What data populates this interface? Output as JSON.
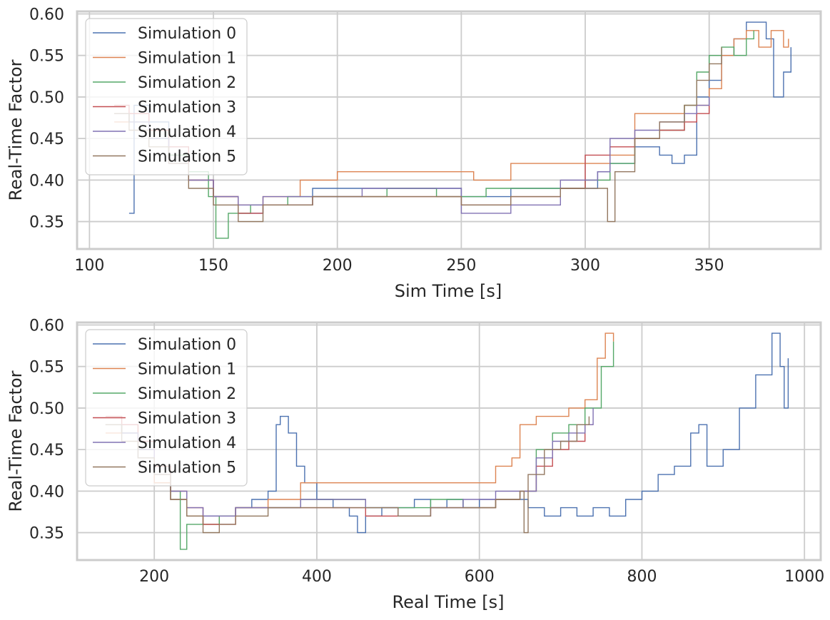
{
  "chart_data": [
    {
      "type": "line",
      "xlabel": "Sim Time [s]",
      "ylabel": "Real-Time Factor",
      "xlim": [
        95,
        395
      ],
      "ylim": [
        0.317,
        0.603
      ],
      "xticks": [
        100,
        150,
        200,
        250,
        300,
        350
      ],
      "xtick_labels": [
        "100",
        "150",
        "200",
        "250",
        "300",
        "350"
      ],
      "yticks": [
        0.35,
        0.4,
        0.45,
        0.5,
        0.55,
        0.6
      ],
      "ytick_labels": [
        "0.35",
        "0.40",
        "0.45",
        "0.50",
        "0.55",
        "0.60"
      ],
      "grid": true,
      "legend_position": "top-left",
      "series": [
        {
          "name": "Simulation 0",
          "color": "#4c72b0",
          "x": [
            116,
            118,
            124,
            132,
            140,
            150,
            160,
            170,
            190,
            210,
            230,
            250,
            270,
            290,
            305,
            310,
            320,
            330,
            335,
            340,
            345,
            350,
            355,
            360,
            365,
            370,
            373,
            376,
            380,
            383
          ],
          "y": [
            0.36,
            0.49,
            0.47,
            0.43,
            0.4,
            0.38,
            0.36,
            0.37,
            0.39,
            0.39,
            0.39,
            0.38,
            0.39,
            0.39,
            0.41,
            0.42,
            0.44,
            0.43,
            0.42,
            0.43,
            0.5,
            0.52,
            0.55,
            0.57,
            0.59,
            0.59,
            0.57,
            0.5,
            0.53,
            0.56
          ]
        },
        {
          "name": "Simulation 1",
          "color": "#dd8452",
          "x": [
            110,
            116,
            124,
            132,
            140,
            150,
            160,
            170,
            185,
            200,
            220,
            240,
            255,
            270,
            290,
            310,
            320,
            330,
            340,
            350,
            355,
            360,
            365,
            370,
            375,
            380,
            382
          ],
          "y": [
            0.47,
            0.48,
            0.46,
            0.43,
            0.4,
            0.38,
            0.37,
            0.38,
            0.4,
            0.41,
            0.41,
            0.41,
            0.4,
            0.42,
            0.42,
            0.43,
            0.48,
            0.48,
            0.49,
            0.51,
            0.55,
            0.57,
            0.58,
            0.56,
            0.58,
            0.56,
            0.57
          ]
        },
        {
          "name": "Simulation 2",
          "color": "#55a868",
          "x": [
            110,
            116,
            124,
            132,
            140,
            148,
            151,
            156,
            165,
            180,
            200,
            220,
            240,
            260,
            280,
            300,
            310,
            320,
            330,
            340,
            345,
            350,
            355,
            360,
            365,
            368
          ],
          "y": [
            0.48,
            0.47,
            0.45,
            0.43,
            0.41,
            0.38,
            0.33,
            0.36,
            0.37,
            0.38,
            0.38,
            0.39,
            0.38,
            0.39,
            0.39,
            0.4,
            0.42,
            0.45,
            0.46,
            0.49,
            0.53,
            0.55,
            0.56,
            0.55,
            0.57,
            0.58
          ]
        },
        {
          "name": "Simulation 3",
          "color": "#c44e52",
          "x": [
            110,
            116,
            124,
            132,
            140,
            150,
            160,
            170,
            190,
            210,
            230,
            250,
            270,
            290,
            300,
            310,
            320,
            330,
            340,
            345,
            350
          ],
          "y": [
            0.49,
            0.48,
            0.46,
            0.44,
            0.4,
            0.38,
            0.36,
            0.37,
            0.38,
            0.38,
            0.38,
            0.37,
            0.38,
            0.39,
            0.43,
            0.44,
            0.45,
            0.46,
            0.47,
            0.48,
            0.49
          ]
        },
        {
          "name": "Simulation 4",
          "color": "#8172b3",
          "x": [
            110,
            116,
            124,
            132,
            140,
            150,
            160,
            170,
            190,
            210,
            230,
            250,
            270,
            290,
            305,
            310,
            320,
            330,
            340,
            345,
            350
          ],
          "y": [
            0.48,
            0.47,
            0.45,
            0.42,
            0.4,
            0.38,
            0.37,
            0.38,
            0.38,
            0.39,
            0.39,
            0.36,
            0.37,
            0.4,
            0.41,
            0.45,
            0.46,
            0.47,
            0.48,
            0.49,
            0.5
          ]
        },
        {
          "name": "Simulation 5",
          "color": "#937860",
          "x": [
            110,
            116,
            124,
            132,
            140,
            150,
            160,
            170,
            190,
            210,
            230,
            250,
            270,
            290,
            305,
            309,
            312,
            320,
            330,
            340,
            345,
            350,
            355
          ],
          "y": [
            0.48,
            0.46,
            0.44,
            0.42,
            0.39,
            0.37,
            0.35,
            0.37,
            0.38,
            0.38,
            0.38,
            0.37,
            0.38,
            0.39,
            0.39,
            0.35,
            0.41,
            0.45,
            0.47,
            0.49,
            0.52,
            0.54,
            0.56
          ]
        }
      ]
    },
    {
      "type": "line",
      "xlabel": "Real Time [s]",
      "ylabel": "Real-Time Factor",
      "xlim": [
        105,
        1020
      ],
      "ylim": [
        0.317,
        0.603
      ],
      "xticks": [
        200,
        400,
        600,
        800,
        1000
      ],
      "xtick_labels": [
        "200",
        "400",
        "600",
        "800",
        "1000"
      ],
      "yticks": [
        0.35,
        0.4,
        0.45,
        0.5,
        0.55,
        0.6
      ],
      "ytick_labels": [
        "0.35",
        "0.40",
        "0.45",
        "0.50",
        "0.55",
        "0.60"
      ],
      "grid": true,
      "legend_position": "top-left",
      "series": [
        {
          "name": "Simulation 0",
          "color": "#4c72b0",
          "x": [
            140,
            160,
            180,
            200,
            220,
            240,
            260,
            280,
            300,
            320,
            340,
            350,
            355,
            365,
            375,
            385,
            400,
            420,
            440,
            450,
            460,
            480,
            500,
            520,
            540,
            560,
            580,
            600,
            620,
            640,
            660,
            680,
            700,
            720,
            740,
            760,
            780,
            800,
            820,
            840,
            860,
            870,
            880,
            900,
            920,
            940,
            960,
            965,
            970,
            975,
            980
          ],
          "y": [
            0.48,
            0.47,
            0.44,
            0.41,
            0.39,
            0.37,
            0.37,
            0.37,
            0.38,
            0.39,
            0.4,
            0.48,
            0.49,
            0.47,
            0.43,
            0.41,
            0.39,
            0.38,
            0.37,
            0.35,
            0.37,
            0.38,
            0.38,
            0.39,
            0.38,
            0.39,
            0.38,
            0.39,
            0.39,
            0.39,
            0.38,
            0.37,
            0.38,
            0.37,
            0.38,
            0.37,
            0.39,
            0.4,
            0.42,
            0.43,
            0.47,
            0.48,
            0.43,
            0.45,
            0.5,
            0.54,
            0.59,
            0.59,
            0.55,
            0.5,
            0.56
          ]
        },
        {
          "name": "Simulation 1",
          "color": "#dd8452",
          "x": [
            140,
            160,
            180,
            200,
            220,
            240,
            260,
            280,
            300,
            340,
            380,
            420,
            460,
            500,
            540,
            580,
            620,
            640,
            650,
            670,
            690,
            710,
            730,
            745,
            755,
            765
          ],
          "y": [
            0.47,
            0.48,
            0.45,
            0.41,
            0.39,
            0.37,
            0.36,
            0.37,
            0.38,
            0.39,
            0.41,
            0.41,
            0.41,
            0.41,
            0.41,
            0.41,
            0.43,
            0.44,
            0.48,
            0.49,
            0.49,
            0.5,
            0.51,
            0.56,
            0.59,
            0.58
          ]
        },
        {
          "name": "Simulation 2",
          "color": "#55a868",
          "x": [
            140,
            160,
            180,
            200,
            220,
            232,
            240,
            260,
            280,
            300,
            340,
            380,
            420,
            460,
            500,
            540,
            580,
            620,
            650,
            670,
            690,
            710,
            730,
            750,
            765
          ],
          "y": [
            0.48,
            0.47,
            0.45,
            0.43,
            0.4,
            0.33,
            0.36,
            0.36,
            0.37,
            0.38,
            0.38,
            0.39,
            0.39,
            0.38,
            0.38,
            0.39,
            0.38,
            0.39,
            0.4,
            0.45,
            0.47,
            0.48,
            0.5,
            0.55,
            0.58
          ]
        },
        {
          "name": "Simulation 3",
          "color": "#c44e52",
          "x": [
            140,
            160,
            180,
            200,
            220,
            240,
            260,
            280,
            300,
            340,
            380,
            420,
            460,
            500,
            540,
            580,
            620,
            650,
            670,
            690,
            710,
            730,
            740
          ],
          "y": [
            0.49,
            0.48,
            0.46,
            0.43,
            0.4,
            0.38,
            0.36,
            0.36,
            0.38,
            0.38,
            0.38,
            0.38,
            0.37,
            0.37,
            0.38,
            0.38,
            0.39,
            0.4,
            0.43,
            0.45,
            0.46,
            0.48,
            0.48
          ]
        },
        {
          "name": "Simulation 4",
          "color": "#8172b3",
          "x": [
            140,
            160,
            180,
            200,
            220,
            240,
            260,
            280,
            300,
            340,
            380,
            420,
            460,
            500,
            540,
            580,
            620,
            650,
            670,
            690,
            710,
            730,
            740
          ],
          "y": [
            0.48,
            0.47,
            0.45,
            0.42,
            0.4,
            0.38,
            0.37,
            0.37,
            0.38,
            0.38,
            0.39,
            0.39,
            0.38,
            0.37,
            0.38,
            0.39,
            0.4,
            0.4,
            0.44,
            0.46,
            0.47,
            0.48,
            0.5
          ]
        },
        {
          "name": "Simulation 5",
          "color": "#937860",
          "x": [
            140,
            160,
            180,
            200,
            220,
            240,
            260,
            280,
            300,
            340,
            380,
            420,
            460,
            500,
            540,
            580,
            620,
            650,
            655,
            660,
            680,
            700,
            720,
            735
          ],
          "y": [
            0.48,
            0.46,
            0.44,
            0.42,
            0.39,
            0.37,
            0.35,
            0.36,
            0.37,
            0.38,
            0.38,
            0.38,
            0.38,
            0.37,
            0.38,
            0.38,
            0.39,
            0.4,
            0.35,
            0.42,
            0.45,
            0.46,
            0.48,
            0.49
          ]
        }
      ]
    }
  ]
}
